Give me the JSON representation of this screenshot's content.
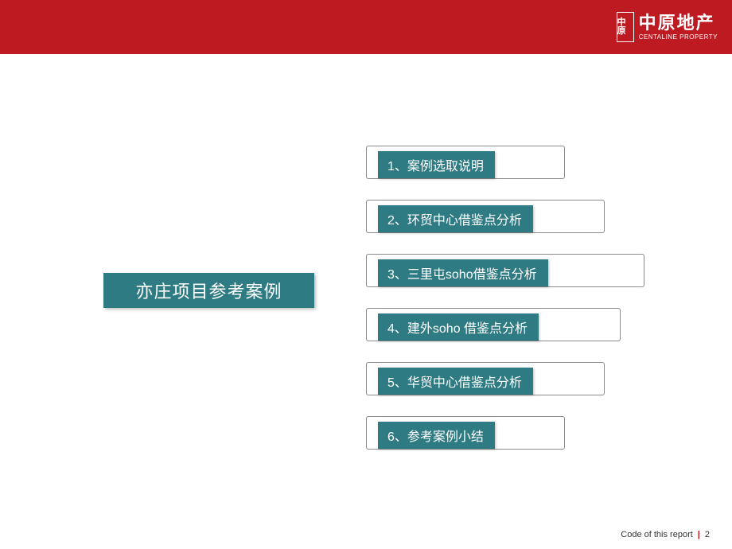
{
  "header": {
    "background_color": "#be1a21",
    "logo": {
      "mark_text": "中原",
      "cn": "中原地产",
      "en": "CENTALINE PROPERTY"
    }
  },
  "main_title": {
    "text": "亦庄项目参考案例",
    "background_color": "#2f7b84",
    "text_color": "#ffffff",
    "fontsize": 22
  },
  "toc": {
    "item_background_color": "#2f7b84",
    "item_text_color": "#ffffff",
    "frame_border_color": "#8b8b8b",
    "items": [
      {
        "label": "1、案例选取说明",
        "width_class": "w0"
      },
      {
        "label": "2、环贸中心借鉴点分析",
        "width_class": "w1"
      },
      {
        "label": "3、三里屯soho借鉴点分析",
        "width_class": "w2"
      },
      {
        "label": "4、建外soho 借鉴点分析",
        "width_class": "w3"
      },
      {
        "label": "5、华贸中心借鉴点分析",
        "width_class": "w4"
      },
      {
        "label": "6、参考案例小结",
        "width_class": "w5"
      }
    ]
  },
  "footer": {
    "text": "Code of this report",
    "page_number": "2",
    "separator_color": "#be1a21"
  },
  "colors": {
    "brand_red": "#be1a21",
    "teal": "#2f7b84",
    "white": "#ffffff",
    "gray_border": "#8b8b8b"
  }
}
